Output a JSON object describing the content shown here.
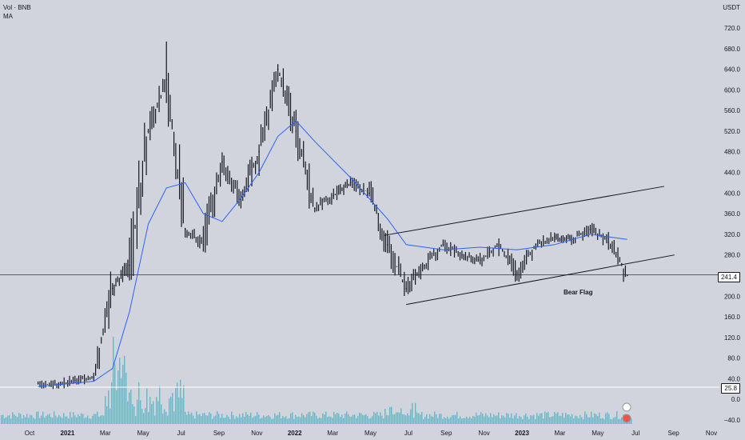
{
  "legend": {
    "line1": "Vol · BNB",
    "line2": "MA"
  },
  "unit_label": "USDT",
  "colors": {
    "background": "#d1d4dc",
    "candle": "#131722",
    "ma": "#2962ff",
    "volume": "#26c6da",
    "lines": "#131722"
  },
  "chart_data": {
    "type": "line",
    "title": "",
    "xlabel": "",
    "ylabel": "USDT",
    "x_ticks": [
      "Oct",
      "2021",
      "Mar",
      "May",
      "Jul",
      "Sep",
      "Nov",
      "2022",
      "Mar",
      "May",
      "Jul",
      "Sep",
      "Nov",
      "2023",
      "Mar",
      "May",
      "Jul",
      "Sep",
      "Nov"
    ],
    "y_ticks": [
      "720.0",
      "680.0",
      "640.0",
      "600.0",
      "560.0",
      "520.0",
      "480.0",
      "440.0",
      "400.0",
      "360.0",
      "320.0",
      "280.0",
      "240.0",
      "200.0",
      "160.0",
      "120.0",
      "80.0",
      "40.0",
      "0.0",
      "−40.0"
    ],
    "ylim": [
      -40,
      740
    ],
    "series": [
      {
        "name": "",
        "style": "candles-close",
        "x": [
          "2020-10",
          "2020-11",
          "2020-12",
          "2021-01",
          "2021-02",
          "2021-03",
          "2021-04",
          "2021-05",
          "2021-06",
          "2021-07",
          "2021-08",
          "2021-09",
          "2021-10",
          "2021-11",
          "2021-12",
          "2022-01",
          "2022-02",
          "2022-03",
          "2022-04",
          "2022-05",
          "2022-06",
          "2022-07",
          "2022-08",
          "2022-09",
          "2022-10",
          "2022-11",
          "2022-12",
          "2023-01",
          "2023-02",
          "2023-03",
          "2023-04",
          "2023-05",
          "2023-06"
        ],
        "values": [
          30,
          29,
          37,
          43,
          215,
          260,
          520,
          620,
          330,
          300,
          460,
          390,
          480,
          640,
          520,
          370,
          395,
          420,
          400,
          300,
          215,
          260,
          300,
          280,
          270,
          300,
          245,
          300,
          315,
          310,
          330,
          305,
          240
        ]
      },
      {
        "name": "MA",
        "style": "ma",
        "x": [
          "2020-10",
          "2021-01",
          "2021-02",
          "2021-03",
          "2021-04",
          "2021-05",
          "2021-06",
          "2021-07",
          "2021-08",
          "2021-09",
          "2021-10",
          "2021-11",
          "2021-12",
          "2022-01",
          "2022-03",
          "2022-05",
          "2022-06",
          "2022-08",
          "2022-10",
          "2022-12",
          "2023-02",
          "2023-04",
          "2023-06"
        ],
        "values": [
          25,
          35,
          60,
          170,
          340,
          410,
          420,
          360,
          345,
          390,
          440,
          510,
          540,
          500,
          430,
          350,
          300,
          290,
          295,
          290,
          300,
          320,
          310
        ]
      }
    ],
    "volume": {
      "ma_value": "25.8"
    },
    "current_price": "241.4",
    "annotations": [
      "Bear Flag"
    ],
    "trendlines": [
      {
        "from": [
          "2022-05-10",
          318
        ],
        "to": [
          "2023-08-15",
          413
        ]
      },
      {
        "from": [
          "2022-06-15",
          184
        ],
        "to": [
          "2023-09-01",
          280
        ]
      }
    ],
    "hlines": [
      241.4
    ]
  }
}
